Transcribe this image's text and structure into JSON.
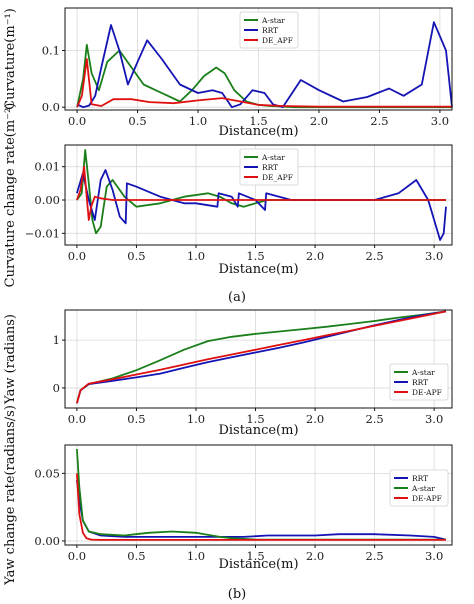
{
  "captions": {
    "a": "(a)",
    "b": "(b)"
  },
  "chart_data": [
    {
      "type": "line",
      "xlabel": "Distance(m)",
      "ylabel": "Curvature(m⁻¹)",
      "xlim": [
        -0.1,
        3.1
      ],
      "ylim": [
        -0.005,
        0.175
      ],
      "xticks": [
        "0.0",
        "0.5",
        "1.0",
        "1.5",
        "2.0",
        "2.5",
        "3.0"
      ],
      "yticks": [
        "0.0",
        "0.1"
      ],
      "grid": true,
      "legend": "top-center",
      "series": [
        {
          "name": "A-star",
          "color": "#1a7f1a",
          "x": [
            0,
            0.05,
            0.08,
            0.12,
            0.18,
            0.25,
            0.35,
            0.45,
            0.55,
            0.65,
            0.75,
            0.85,
            0.95,
            1.05,
            1.15,
            1.22,
            1.3,
            1.4,
            1.5,
            1.6,
            1.7,
            1.8,
            2.0,
            2.5,
            3.0,
            3.1
          ],
          "y": [
            0.0,
            0.05,
            0.11,
            0.06,
            0.03,
            0.08,
            0.1,
            0.07,
            0.04,
            0.03,
            0.02,
            0.01,
            0.03,
            0.055,
            0.07,
            0.06,
            0.03,
            0.01,
            0.004,
            0.002,
            0.001,
            0.0,
            0.0,
            0.0,
            0.0,
            0.0
          ]
        },
        {
          "name": "RRT",
          "color": "#1414b4",
          "x": [
            0,
            0.05,
            0.1,
            0.15,
            0.2,
            0.28,
            0.35,
            0.42,
            0.5,
            0.58,
            0.7,
            0.85,
            1.0,
            1.12,
            1.2,
            1.28,
            1.35,
            1.45,
            1.55,
            1.62,
            1.7,
            1.85,
            2.0,
            2.2,
            2.4,
            2.58,
            2.7,
            2.85,
            2.95,
            3.05,
            3.1
          ],
          "y": [
            0.005,
            0.0,
            0.003,
            0.02,
            0.07,
            0.145,
            0.1,
            0.04,
            0.08,
            0.118,
            0.085,
            0.04,
            0.025,
            0.03,
            0.025,
            0.0,
            0.005,
            0.03,
            0.025,
            0.005,
            0.0,
            0.048,
            0.03,
            0.01,
            0.018,
            0.033,
            0.02,
            0.04,
            0.15,
            0.1,
            0.0
          ]
        },
        {
          "name": "DE_APF",
          "color": "#e01010",
          "x": [
            0,
            0.04,
            0.08,
            0.12,
            0.2,
            0.3,
            0.45,
            0.6,
            0.8,
            1.0,
            1.2,
            1.35,
            1.5,
            1.7,
            2.0,
            2.5,
            3.0,
            3.1
          ],
          "y": [
            0.0,
            0.02,
            0.085,
            0.005,
            0.002,
            0.014,
            0.014,
            0.009,
            0.007,
            0.012,
            0.016,
            0.01,
            0.004,
            0.002,
            0.001,
            0.001,
            0.001,
            0.001
          ]
        }
      ]
    },
    {
      "type": "line",
      "xlabel": "Distance(m)",
      "ylabel": "Curvature change rate(m⁻²)",
      "xlim": [
        -0.1,
        3.15
      ],
      "ylim": [
        -0.0135,
        0.0165
      ],
      "xticks": [
        "0.0",
        "0.5",
        "1.0",
        "1.5",
        "2.0",
        "2.5",
        "3.0"
      ],
      "yticks": [
        "−0.01",
        "0.00",
        "0.01"
      ],
      "grid": true,
      "legend": "top-center",
      "series": [
        {
          "name": "A-star",
          "color": "#1a7f1a",
          "x": [
            0,
            0.04,
            0.07,
            0.1,
            0.13,
            0.16,
            0.2,
            0.25,
            0.3,
            0.4,
            0.5,
            0.7,
            0.9,
            1.1,
            1.2,
            1.25,
            1.3,
            1.4,
            1.5,
            1.6,
            1.8,
            2.0,
            2.5,
            3.0,
            3.1
          ],
          "y": [
            0.0,
            0.002,
            0.015,
            0.005,
            -0.006,
            -0.01,
            -0.008,
            0.004,
            0.006,
            0.001,
            -0.002,
            -0.001,
            0.001,
            0.002,
            0.001,
            0.0,
            -0.001,
            -0.002,
            -0.001,
            0.0,
            0.0,
            0.0,
            0.0,
            0.0,
            0.0
          ]
        },
        {
          "name": "RRT",
          "color": "#1414b4",
          "x": [
            0,
            0.05,
            0.1,
            0.15,
            0.2,
            0.24,
            0.3,
            0.36,
            0.41,
            0.42,
            0.5,
            0.7,
            0.9,
            1.0,
            1.18,
            1.19,
            1.3,
            1.35,
            1.36,
            1.5,
            1.58,
            1.59,
            1.8,
            2.0,
            2.5,
            2.7,
            2.85,
            2.95,
            3.05,
            3.08,
            3.1
          ],
          "y": [
            0.002,
            0.008,
            0.0,
            -0.006,
            0.006,
            0.009,
            0.003,
            -0.005,
            -0.007,
            0.005,
            0.004,
            0.001,
            -0.001,
            -0.001,
            -0.002,
            0.002,
            0.001,
            -0.002,
            0.002,
            0.0,
            -0.003,
            0.002,
            0.0,
            0.0,
            0.0,
            0.002,
            0.006,
            0.0,
            -0.012,
            -0.01,
            -0.002
          ]
        },
        {
          "name": "DE_APF",
          "color": "#e01010",
          "x": [
            0,
            0.03,
            0.06,
            0.08,
            0.1,
            0.12,
            0.15,
            0.2,
            0.3,
            0.5,
            1.0,
            1.5,
            2.0,
            2.5,
            3.0,
            3.1
          ],
          "y": [
            0.0,
            0.003,
            0.01,
            0.002,
            -0.006,
            -0.002,
            0.001,
            0.0005,
            0.0,
            0.0,
            0.0,
            0.0,
            0.0,
            0.0,
            0.0,
            0.0
          ]
        }
      ]
    },
    {
      "type": "line",
      "xlabel": "Distance(m)",
      "ylabel": "Yaw (radians)",
      "xlim": [
        -0.1,
        3.15
      ],
      "ylim": [
        -0.42,
        1.63
      ],
      "xticks": [
        "0.0",
        "0.5",
        "1.0",
        "1.5",
        "2.0",
        "2.5",
        "3.0"
      ],
      "yticks": [
        "0",
        "1"
      ],
      "grid": true,
      "legend": "center-right",
      "series": [
        {
          "name": "A-star",
          "color": "#1a7f1a",
          "x": [
            0,
            0.03,
            0.1,
            0.3,
            0.5,
            0.7,
            0.9,
            1.1,
            1.3,
            1.5,
            1.7,
            1.9,
            2.1,
            2.3,
            2.5,
            2.7,
            2.9,
            3.1
          ],
          "y": [
            -0.32,
            -0.05,
            0.08,
            0.2,
            0.37,
            0.58,
            0.8,
            0.98,
            1.07,
            1.13,
            1.18,
            1.23,
            1.28,
            1.34,
            1.4,
            1.47,
            1.53,
            1.6
          ]
        },
        {
          "name": "RRT",
          "color": "#1414b4",
          "x": [
            0,
            0.03,
            0.1,
            0.3,
            0.5,
            0.7,
            0.9,
            1.1,
            1.3,
            1.5,
            1.7,
            1.9,
            2.1,
            2.3,
            2.5,
            2.7,
            2.9,
            3.1
          ],
          "y": [
            -0.32,
            -0.05,
            0.08,
            0.15,
            0.22,
            0.3,
            0.42,
            0.54,
            0.64,
            0.74,
            0.84,
            0.95,
            1.07,
            1.19,
            1.31,
            1.42,
            1.52,
            1.6
          ]
        },
        {
          "name": "DE-APF",
          "color": "#e01010",
          "x": [
            0,
            0.03,
            0.1,
            0.3,
            0.5,
            0.7,
            0.9,
            1.1,
            1.3,
            1.5,
            1.7,
            1.9,
            2.1,
            2.3,
            2.5,
            2.7,
            2.9,
            3.1
          ],
          "y": [
            -0.32,
            -0.05,
            0.09,
            0.18,
            0.28,
            0.38,
            0.49,
            0.6,
            0.7,
            0.8,
            0.9,
            1.0,
            1.1,
            1.2,
            1.3,
            1.4,
            1.5,
            1.6
          ]
        }
      ]
    },
    {
      "type": "line",
      "xlabel": "Distance(m)",
      "ylabel": "Yaw change rate(radians/s)",
      "xlim": [
        -0.1,
        3.15
      ],
      "ylim": [
        -0.003,
        0.071
      ],
      "xticks": [
        "0.0",
        "0.5",
        "1.0",
        "1.5",
        "2.0",
        "2.5",
        "3.0"
      ],
      "yticks": [
        "0.00",
        "0.05"
      ],
      "grid": true,
      "legend": "center-right",
      "series": [
        {
          "name": "RRT",
          "color": "#1414b4",
          "x": [
            0,
            0.02,
            0.05,
            0.1,
            0.2,
            0.4,
            0.6,
            0.8,
            1.0,
            1.2,
            1.4,
            1.6,
            1.8,
            2.0,
            2.2,
            2.5,
            2.8,
            3.0,
            3.1
          ],
          "y": [
            0.045,
            0.03,
            0.015,
            0.007,
            0.004,
            0.003,
            0.003,
            0.003,
            0.003,
            0.003,
            0.003,
            0.004,
            0.004,
            0.004,
            0.005,
            0.005,
            0.004,
            0.003,
            0.001
          ]
        },
        {
          "name": "A-star",
          "color": "#1a7f1a",
          "x": [
            0,
            0.02,
            0.05,
            0.1,
            0.2,
            0.4,
            0.6,
            0.8,
            1.0,
            1.2,
            1.3,
            1.5,
            2.0,
            2.5,
            3.0,
            3.1
          ],
          "y": [
            0.068,
            0.04,
            0.015,
            0.007,
            0.005,
            0.004,
            0.006,
            0.007,
            0.006,
            0.003,
            0.002,
            0.001,
            0.001,
            0.001,
            0.001,
            0.001
          ]
        },
        {
          "name": "DE-APF",
          "color": "#e01010",
          "x": [
            0,
            0.02,
            0.05,
            0.08,
            0.12,
            0.2,
            0.4,
            0.8,
            1.2,
            1.6,
            2.0,
            2.5,
            3.0,
            3.1
          ],
          "y": [
            0.05,
            0.02,
            0.006,
            0.002,
            0.001,
            0.0008,
            0.0008,
            0.0008,
            0.0008,
            0.0008,
            0.0008,
            0.0008,
            0.0008,
            0.0008
          ]
        }
      ]
    }
  ]
}
